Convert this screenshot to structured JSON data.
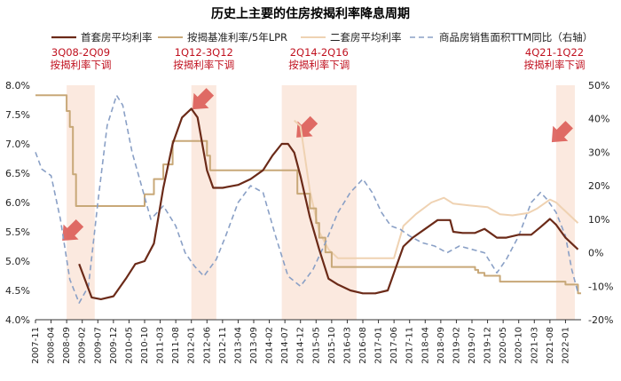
{
  "chart_data": {
    "type": "line",
    "title": "历史上主要的住房按揭利率降息周期",
    "colors": {
      "first_home": "#6b2a18",
      "base_rate": "#c8a878",
      "second_home": "#efd2b2",
      "sales": "#8aa0c6",
      "band": "#fbe9df",
      "annotation": "#c0111f",
      "arrow": "#d9534f"
    },
    "legend": {
      "placement": "top",
      "items": [
        {
          "key": "first_home",
          "label": "首套房平均利率"
        },
        {
          "key": "base_rate",
          "label": "按揭基准利率/5年LPR"
        },
        {
          "key": "second_home",
          "label": "二套房平均利率"
        },
        {
          "key": "sales",
          "label": "商品房销售面积TTM同比（右轴）"
        }
      ]
    },
    "y_left": {
      "min": 4.0,
      "max": 8.0,
      "ticks": [
        "4.0%",
        "4.5%",
        "5.0%",
        "5.5%",
        "6.0%",
        "6.5%",
        "7.0%",
        "7.5%",
        "8.0%"
      ]
    },
    "y_right": {
      "min": -20,
      "max": 50,
      "ticks": [
        "-20%",
        "-10%",
        "0%",
        "10%",
        "20%",
        "30%",
        "40%",
        "50%"
      ]
    },
    "x_ticks": [
      "2007-11",
      "2008-04",
      "2008-09",
      "2009-02",
      "2009-07",
      "2009-12",
      "2010-05",
      "2010-10",
      "2011-03",
      "2011-08",
      "2012-01",
      "2012-06",
      "2012-11",
      "2013-04",
      "2013-09",
      "2014-02",
      "2014-07",
      "2014-12",
      "2015-05",
      "2015-10",
      "2016-03",
      "2016-08",
      "2017-01",
      "2017-06",
      "2017-11",
      "2018-04",
      "2018-09",
      "2019-02",
      "2019-07",
      "2019-12",
      "2020-05",
      "2020-10",
      "2021-03",
      "2021-08",
      "2022-01"
    ],
    "x_range": [
      "2007-11",
      "2022-06"
    ],
    "cut_cycles": [
      {
        "label_line1": "3Q08-2Q09",
        "label_line2": "按揭利率下调",
        "start": "2008-09",
        "end": "2009-06"
      },
      {
        "label_line1": "1Q12-3Q12",
        "label_line2": "按揭利率下调",
        "start": "2012-01",
        "end": "2012-09"
      },
      {
        "label_line1": "2Q14-2Q16",
        "label_line2": "按揭利率下调",
        "start": "2014-06",
        "end": "2016-06"
      },
      {
        "label_line1": "4Q21-1Q22",
        "label_line2": "按揭利率下调",
        "start": "2021-10",
        "end": "2022-04"
      }
    ],
    "series": [
      {
        "key": "first_home",
        "name": "首套房平均利率",
        "axis": "left",
        "x": [
          "2009-01",
          "2009-05",
          "2009-08",
          "2009-12",
          "2010-04",
          "2010-07",
          "2010-10",
          "2011-01",
          "2011-04",
          "2011-07",
          "2011-10",
          "2012-01",
          "2012-03",
          "2012-06",
          "2012-08",
          "2012-11",
          "2013-04",
          "2013-08",
          "2013-12",
          "2014-03",
          "2014-06",
          "2014-08",
          "2014-10",
          "2014-12",
          "2015-03",
          "2015-06",
          "2015-09",
          "2015-12",
          "2016-04",
          "2016-08",
          "2016-12",
          "2017-04",
          "2017-06",
          "2017-09",
          "2017-12",
          "2018-04",
          "2018-08",
          "2018-12",
          "2019-01",
          "2019-04",
          "2019-08",
          "2019-11",
          "2020-03",
          "2020-06",
          "2020-10",
          "2021-02",
          "2021-05",
          "2021-08",
          "2021-10",
          "2022-01",
          "2022-05"
        ],
        "y": [
          4.95,
          4.38,
          4.35,
          4.4,
          4.7,
          4.95,
          5.0,
          5.3,
          6.25,
          7.0,
          7.45,
          7.6,
          7.45,
          6.55,
          6.25,
          6.25,
          6.3,
          6.4,
          6.55,
          6.8,
          7.0,
          7.0,
          6.85,
          6.45,
          5.75,
          5.2,
          4.7,
          4.6,
          4.5,
          4.45,
          4.45,
          4.5,
          4.8,
          5.25,
          5.4,
          5.55,
          5.7,
          5.7,
          5.5,
          5.48,
          5.48,
          5.55,
          5.4,
          5.4,
          5.45,
          5.45,
          5.58,
          5.72,
          5.62,
          5.4,
          5.2
        ]
      },
      {
        "key": "base_rate",
        "name": "按揭基准利率/5年LPR",
        "axis": "left",
        "x": [
          "2007-11",
          "2008-09",
          "2008-09",
          "2008-10",
          "2008-10",
          "2008-11",
          "2008-11",
          "2008-12",
          "2008-12",
          "2010-10",
          "2010-10",
          "2011-01",
          "2011-01",
          "2011-04",
          "2011-04",
          "2011-07",
          "2011-07",
          "2012-06",
          "2012-06",
          "2012-07",
          "2012-07",
          "2014-11",
          "2014-11",
          "2015-03",
          "2015-03",
          "2015-05",
          "2015-05",
          "2015-06",
          "2015-06",
          "2015-08",
          "2015-08",
          "2015-10",
          "2015-10",
          "2019-08",
          "2019-08",
          "2019-09",
          "2019-09",
          "2019-11",
          "2019-11",
          "2020-04",
          "2020-04",
          "2022-01",
          "2022-01",
          "2022-05",
          "2022-05",
          "2022-06"
        ],
        "y": [
          7.83,
          7.83,
          7.56,
          7.56,
          7.29,
          7.29,
          6.48,
          6.48,
          5.94,
          5.94,
          6.14,
          6.14,
          6.4,
          6.4,
          6.65,
          6.65,
          7.05,
          7.05,
          6.8,
          6.8,
          6.55,
          6.55,
          6.15,
          6.15,
          5.9,
          5.9,
          5.65,
          5.65,
          5.4,
          5.4,
          5.15,
          5.15,
          4.9,
          4.9,
          4.85,
          4.85,
          4.8,
          4.8,
          4.75,
          4.75,
          4.65,
          4.65,
          4.6,
          4.6,
          4.45,
          4.45
        ]
      },
      {
        "key": "second_home",
        "name": "二套房平均利率",
        "axis": "left",
        "x": [
          "2014-10",
          "2014-12",
          "2015-03",
          "2015-06",
          "2015-09",
          "2015-12",
          "2016-06",
          "2016-12",
          "2017-06",
          "2017-09",
          "2018-01",
          "2018-06",
          "2018-10",
          "2019-01",
          "2019-06",
          "2019-12",
          "2020-04",
          "2020-08",
          "2021-01",
          "2021-04",
          "2021-08",
          "2021-10",
          "2022-01",
          "2022-05"
        ],
        "y": [
          7.4,
          7.3,
          6.2,
          5.5,
          5.2,
          5.05,
          5.05,
          5.05,
          5.05,
          5.6,
          5.8,
          6.0,
          6.08,
          5.98,
          5.95,
          5.92,
          5.8,
          5.78,
          5.82,
          5.9,
          6.05,
          6.0,
          5.85,
          5.65
        ]
      },
      {
        "key": "sales",
        "name": "商品房销售面积TTM同比（右轴）",
        "axis": "right",
        "x": [
          "2007-11",
          "2008-01",
          "2008-04",
          "2008-07",
          "2008-10",
          "2009-01",
          "2009-04",
          "2009-07",
          "2009-10",
          "2010-01",
          "2010-03",
          "2010-06",
          "2010-09",
          "2010-12",
          "2011-04",
          "2011-08",
          "2011-11",
          "2012-02",
          "2012-05",
          "2012-09",
          "2012-12",
          "2013-04",
          "2013-08",
          "2013-12",
          "2014-04",
          "2014-08",
          "2014-12",
          "2015-04",
          "2015-08",
          "2015-12",
          "2016-04",
          "2016-08",
          "2016-11",
          "2017-02",
          "2017-05",
          "2017-08",
          "2017-11",
          "2018-03",
          "2018-07",
          "2018-11",
          "2019-03",
          "2019-07",
          "2019-11",
          "2020-03",
          "2020-06",
          "2020-10",
          "2021-02",
          "2021-05",
          "2021-07",
          "2021-10",
          "2022-01",
          "2022-03",
          "2022-05"
        ],
        "y": [
          30,
          25,
          23,
          10,
          -8,
          -15,
          -10,
          15,
          38,
          47,
          44,
          30,
          20,
          10,
          14,
          8,
          0,
          -4,
          -7,
          -2,
          5,
          15,
          20,
          18,
          5,
          -7,
          -10,
          -5,
          3,
          12,
          18,
          22,
          18,
          12,
          8,
          7,
          5,
          3,
          2,
          0,
          2,
          1,
          0,
          -6,
          -2,
          5,
          15,
          18,
          16,
          12,
          5,
          -5,
          -12
        ]
      }
    ]
  }
}
